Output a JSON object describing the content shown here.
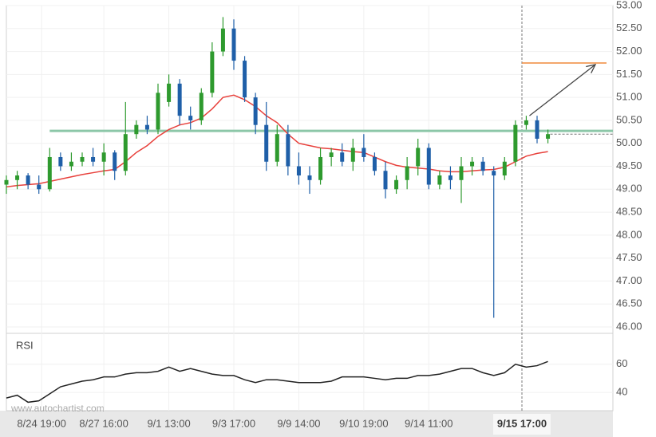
{
  "chart_data": {
    "type": "candlestick",
    "x": [
      0,
      1,
      2,
      3,
      4,
      5,
      6,
      7,
      8,
      9,
      10,
      11,
      12,
      13,
      14,
      15,
      16,
      17,
      18,
      19,
      20,
      21,
      22,
      23,
      24,
      25,
      26,
      27,
      28,
      29,
      30,
      31,
      32,
      33,
      34,
      35,
      36,
      37,
      38,
      39,
      40,
      41,
      42,
      43,
      44,
      45,
      46,
      47,
      48,
      49,
      50
    ],
    "open": [
      49.1,
      49.2,
      49.3,
      49.1,
      49.0,
      49.7,
      49.5,
      49.6,
      49.7,
      49.6,
      49.8,
      49.4,
      50.2,
      50.4,
      50.3,
      50.9,
      51.3,
      50.6,
      50.5,
      51.1,
      52.0,
      52.5,
      51.8,
      51.0,
      50.4,
      49.6,
      50.2,
      49.5,
      49.3,
      49.2,
      49.7,
      49.8,
      49.6,
      49.9,
      49.7,
      49.4,
      49.0,
      49.2,
      49.5,
      49.9,
      49.1,
      49.3,
      49.2,
      49.5,
      49.6,
      49.4,
      49.3,
      49.6,
      50.4,
      50.5,
      50.1
    ],
    "high": [
      49.3,
      49.4,
      49.35,
      49.3,
      49.9,
      49.8,
      49.8,
      49.8,
      49.9,
      50.0,
      49.85,
      50.9,
      50.5,
      50.6,
      51.3,
      51.5,
      51.4,
      50.8,
      51.2,
      52.2,
      52.75,
      52.7,
      51.9,
      51.1,
      50.9,
      50.4,
      50.4,
      49.8,
      49.5,
      49.9,
      49.9,
      50.0,
      50.1,
      50.2,
      49.8,
      49.6,
      49.3,
      49.7,
      50.1,
      50.0,
      49.4,
      49.5,
      49.7,
      49.7,
      49.7,
      49.5,
      49.7,
      50.5,
      50.6,
      50.6,
      50.3
    ],
    "low": [
      48.9,
      49.0,
      49.0,
      48.9,
      48.95,
      49.4,
      49.4,
      49.5,
      49.5,
      49.3,
      49.2,
      49.3,
      50.1,
      50.2,
      50.2,
      50.8,
      50.4,
      50.3,
      50.4,
      51.0,
      51.9,
      51.6,
      50.9,
      50.2,
      49.4,
      49.5,
      49.3,
      49.1,
      48.9,
      49.1,
      49.5,
      49.5,
      49.4,
      49.6,
      49.3,
      48.8,
      48.9,
      49.0,
      49.3,
      49.0,
      49.0,
      49.0,
      48.7,
      49.3,
      49.3,
      46.2,
      49.2,
      49.5,
      50.3,
      50.0,
      50.0
    ],
    "close": [
      49.2,
      49.3,
      49.1,
      49.0,
      49.7,
      49.5,
      49.6,
      49.7,
      49.6,
      49.8,
      49.4,
      50.2,
      50.4,
      50.3,
      51.1,
      51.3,
      50.6,
      50.5,
      51.1,
      52.0,
      52.5,
      51.8,
      51.0,
      50.4,
      49.6,
      50.2,
      49.5,
      49.3,
      49.2,
      49.7,
      49.8,
      49.6,
      49.9,
      49.7,
      49.4,
      49.0,
      49.2,
      49.5,
      49.9,
      49.1,
      49.3,
      49.2,
      49.5,
      49.6,
      49.4,
      49.3,
      49.6,
      50.4,
      50.5,
      50.1,
      50.2
    ],
    "up_color": "#2e9a2e",
    "down_color": "#1f5fa8",
    "ma": {
      "color": "#e8413c",
      "values": [
        49.05,
        49.08,
        49.1,
        49.12,
        49.17,
        49.22,
        49.27,
        49.32,
        49.36,
        49.4,
        49.43,
        49.6,
        49.8,
        49.95,
        50.15,
        50.3,
        50.4,
        50.45,
        50.55,
        50.75,
        51.0,
        51.05,
        50.95,
        50.8,
        50.6,
        50.45,
        50.2,
        50.0,
        49.95,
        49.9,
        49.88,
        49.85,
        49.82,
        49.8,
        49.7,
        49.6,
        49.52,
        49.48,
        49.46,
        49.44,
        49.4,
        49.38,
        49.38,
        49.4,
        49.42,
        49.43,
        49.48,
        49.6,
        49.72,
        49.78,
        49.82
      ]
    },
    "support_level": 50.27,
    "support_color": "#8cc7a8",
    "target_level": 51.75,
    "target_color": "#f08a3c",
    "xlim": [
      0,
      56
    ],
    "xticks": [
      {
        "value": 3.25,
        "label": "8/24 19:00"
      },
      {
        "value": 9,
        "label": "8/27 16:00"
      },
      {
        "value": 15,
        "label": "9/1 13:00"
      },
      {
        "value": 21,
        "label": "9/3 17:00"
      },
      {
        "value": 27,
        "label": "9/9 14:00"
      },
      {
        "value": 33,
        "label": "9/10 19:00"
      },
      {
        "value": 39,
        "label": "9/14 11:00"
      },
      {
        "value": 47.6,
        "label": "9/15 17:00"
      }
    ],
    "ylim": [
      46,
      53
    ],
    "yticks": [
      {
        "value": 46,
        "label": "46.00"
      },
      {
        "value": 46.5,
        "label": "46.50"
      },
      {
        "value": 47,
        "label": "47.00"
      },
      {
        "value": 47.5,
        "label": "47.50"
      },
      {
        "value": 48,
        "label": "48.00"
      },
      {
        "value": 48.5,
        "label": "48.50"
      },
      {
        "value": 49,
        "label": "49.00"
      },
      {
        "value": 49.5,
        "label": "49.50"
      },
      {
        "value": 50,
        "label": "50.00"
      },
      {
        "value": 50.5,
        "label": "50.50"
      },
      {
        "value": 51,
        "label": "51.00"
      },
      {
        "value": 51.5,
        "label": "51.50"
      },
      {
        "value": 52,
        "label": "52.00"
      },
      {
        "value": 52.5,
        "label": "52.50"
      },
      {
        "value": 53,
        "label": "53.00"
      }
    ],
    "grid": true,
    "rsi": {
      "label": "RSI",
      "color": "#222222",
      "ylim": [
        27,
        82
      ],
      "yticks": [
        40,
        60
      ],
      "values": [
        36,
        38,
        33,
        34,
        39,
        44,
        46,
        48,
        49,
        51,
        51,
        53,
        54,
        54,
        55,
        58,
        55,
        57,
        55,
        53,
        52,
        52,
        49,
        47,
        49,
        49,
        48,
        47,
        47,
        47,
        48,
        51,
        51,
        51,
        50,
        49,
        50,
        50,
        52,
        52,
        53,
        55,
        57,
        57,
        54,
        52,
        54,
        60,
        58,
        59,
        62
      ]
    },
    "watermark": "www.autochartist.com"
  }
}
